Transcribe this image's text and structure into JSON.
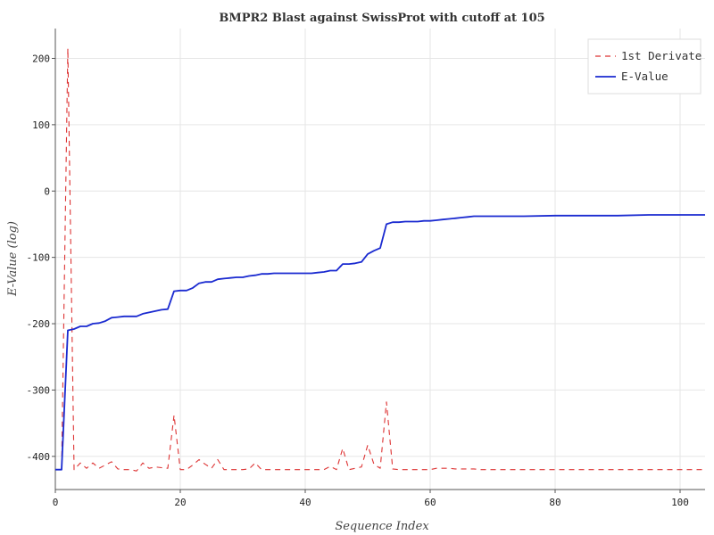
{
  "chart_data": {
    "type": "line",
    "title": "BMPR2 Blast against SwissProt with cutoff at 105",
    "xlabel": "Sequence Index",
    "ylabel": "E-Value (log)",
    "xlim": [
      0,
      104
    ],
    "ylim": [
      -450,
      245
    ],
    "xticks": [
      0,
      20,
      40,
      60,
      80,
      100
    ],
    "yticks": [
      -400,
      -300,
      -200,
      -100,
      0,
      100,
      200
    ],
    "grid": true,
    "legend_position": "top-right",
    "series": [
      {
        "name": "1st Derivate",
        "color": "#dd3333",
        "style": "dashed",
        "x": [
          0,
          1,
          2,
          3,
          4,
          5,
          6,
          7,
          8,
          9,
          10,
          11,
          12,
          13,
          14,
          15,
          16,
          17,
          18,
          19,
          20,
          21,
          22,
          23,
          24,
          25,
          26,
          27,
          28,
          29,
          30,
          31,
          32,
          33,
          34,
          35,
          36,
          37,
          38,
          39,
          40,
          41,
          42,
          43,
          44,
          45,
          46,
          47,
          48,
          49,
          50,
          51,
          52,
          53,
          54,
          55,
          56,
          57,
          58,
          59,
          60,
          61,
          62,
          63,
          64,
          65,
          66,
          67,
          68,
          69,
          70,
          75,
          80,
          85,
          90,
          95,
          100,
          104
        ],
        "values": [
          -420,
          -420,
          215,
          -420,
          -410,
          -418,
          -410,
          -418,
          -413,
          -408,
          -419,
          -420,
          -420,
          -422,
          -410,
          -418,
          -416,
          -417,
          -418,
          -338,
          -420,
          -420,
          -413,
          -405,
          -412,
          -418,
          -405,
          -420,
          -420,
          -420,
          -420,
          -419,
          -410,
          -420,
          -420,
          -420,
          -420,
          -420,
          -420,
          -420,
          -420,
          -420,
          -420,
          -420,
          -415,
          -420,
          -388,
          -420,
          -418,
          -416,
          -383,
          -412,
          -418,
          -318,
          -419,
          -420,
          -420,
          -420,
          -420,
          -420,
          -420,
          -418,
          -418,
          -418,
          -419,
          -419,
          -419,
          -419,
          -420,
          -420,
          -420,
          -420,
          -420,
          -420,
          -420,
          -420,
          -420,
          -420
        ]
      },
      {
        "name": "E-Value",
        "color": "#1a2ad0",
        "style": "solid",
        "x": [
          0,
          1,
          2,
          3,
          4,
          5,
          6,
          7,
          8,
          9,
          10,
          11,
          12,
          13,
          14,
          15,
          16,
          17,
          18,
          19,
          20,
          21,
          22,
          23,
          24,
          25,
          26,
          27,
          28,
          29,
          30,
          31,
          32,
          33,
          34,
          35,
          36,
          37,
          38,
          39,
          40,
          41,
          42,
          43,
          44,
          45,
          46,
          47,
          48,
          49,
          50,
          51,
          52,
          53,
          54,
          55,
          56,
          57,
          58,
          59,
          60,
          61,
          62,
          63,
          64,
          65,
          66,
          67,
          68,
          69,
          70,
          75,
          80,
          85,
          90,
          95,
          100,
          104
        ],
        "values": [
          -420,
          -420,
          -210,
          -208,
          -204,
          -204,
          -200,
          -199,
          -196,
          -191,
          -190,
          -189,
          -189,
          -189,
          -185,
          -183,
          -181,
          -179,
          -178,
          -151,
          -150,
          -150,
          -146,
          -139,
          -137,
          -137,
          -133,
          -132,
          -131,
          -130,
          -130,
          -128,
          -127,
          -125,
          -125,
          -124,
          -124,
          -124,
          -124,
          -124,
          -124,
          -124,
          -123,
          -122,
          -120,
          -120,
          -110,
          -110,
          -109,
          -107,
          -95,
          -90,
          -86,
          -50,
          -47,
          -47,
          -46,
          -46,
          -46,
          -45,
          -45,
          -44,
          -43,
          -42,
          -41,
          -40,
          -39,
          -38,
          -38,
          -38,
          -38,
          -38,
          -37,
          -37,
          -37,
          -36,
          -36,
          -36
        ]
      }
    ]
  }
}
